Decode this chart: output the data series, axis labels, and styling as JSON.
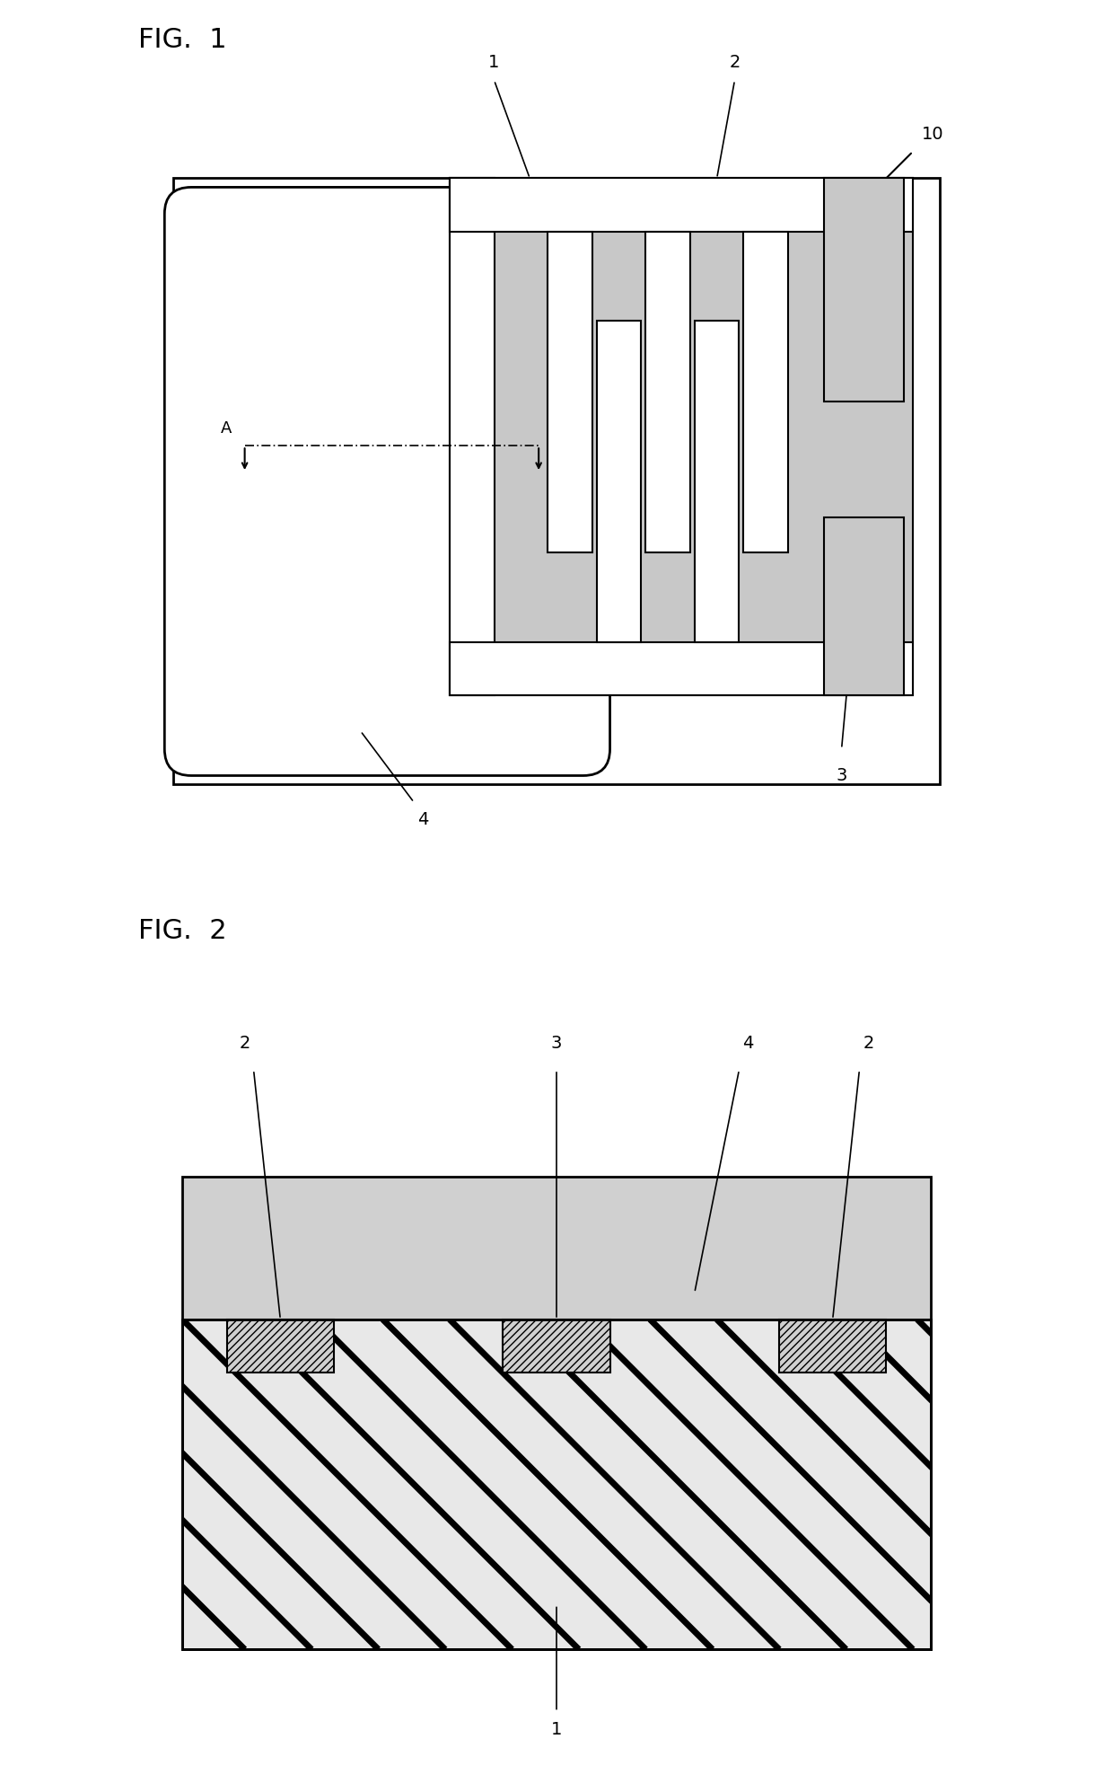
{
  "fig1_title": "FIG.  1",
  "fig2_title": "FIG.  2",
  "dot_color": "#c8c8c8",
  "white": "#ffffff",
  "black": "#000000",
  "stripe_bg": "#e8e8e8",
  "lw_main": 2.0,
  "lw_thin": 1.5
}
